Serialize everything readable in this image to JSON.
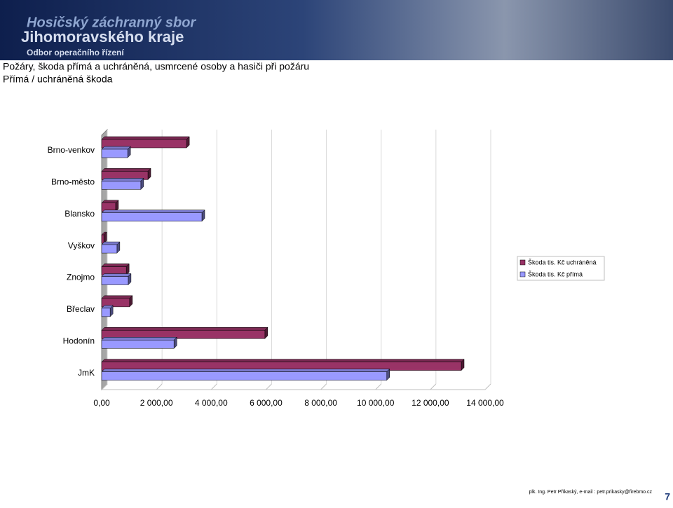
{
  "header": {
    "org_line1": "Hosičský záchranný sbor",
    "org_line2": "Jihomoravského kraje",
    "org_line3": "Odbor operačního řízení"
  },
  "chart_data": {
    "type": "bar3d-horizontal",
    "title": "Požáry, škoda přímá a uchráněná, usmrcené osoby a hasiči při požáru",
    "subtitle": "Přímá / uchráněná škoda",
    "categories": [
      "Brno-venkov",
      "Brno-město",
      "Blansko",
      "Vyškov",
      "Znojmo",
      "Břeclav",
      "Hodonín",
      "JmK"
    ],
    "series": [
      {
        "name": "Škoda tis. Kč uchráněná",
        "color": "#993366",
        "values": [
          3100,
          1690,
          510,
          80,
          900,
          1020,
          5960,
          13130
        ]
      },
      {
        "name": "Škoda tis. Kč přímá",
        "color": "#9999ff",
        "values": [
          950,
          1430,
          3660,
          560,
          970,
          310,
          2640,
          10410
        ]
      }
    ],
    "xlim": [
      0,
      14000
    ],
    "xticks": [
      {
        "value": 0,
        "label": "0,00"
      },
      {
        "value": 2000,
        "label": "2 000,00"
      },
      {
        "value": 4000,
        "label": "4 000,00"
      },
      {
        "value": 6000,
        "label": "6 000,00"
      },
      {
        "value": 8000,
        "label": "8 000,00"
      },
      {
        "value": 10000,
        "label": "10 000,00"
      },
      {
        "value": 12000,
        "label": "12 000,00"
      },
      {
        "value": 14000,
        "label": "14 000,00"
      }
    ],
    "grid": true,
    "legend": "right"
  },
  "footer": {
    "author": "plk. Ing. Petr Příkaský, e-mail : petr.prikasky@firebmo.cz",
    "page_number": 7
  }
}
